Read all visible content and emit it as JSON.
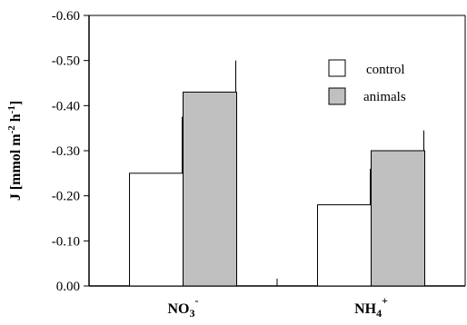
{
  "chart_data": {
    "type": "bar",
    "ylabel_main": "J [mmol m",
    "ylabel_sup1": "-2",
    "ylabel_mid": " h",
    "ylabel_sup2": "-1",
    "ylabel_end": "]",
    "ylim": [
      0,
      -0.6
    ],
    "yticks": [
      "0.00",
      "-0.10",
      "-0.20",
      "-0.30",
      "-0.40",
      "-0.50",
      "-0.60"
    ],
    "ytick_values": [
      0,
      -0.1,
      -0.2,
      -0.3,
      -0.4,
      -0.5,
      -0.6
    ],
    "categories": [
      {
        "base": "NO",
        "sub": "3",
        "sup": "-"
      },
      {
        "base": "NH",
        "sub": "4",
        "sup": "+"
      }
    ],
    "series": [
      {
        "name": "control",
        "values": [
          -0.25,
          -0.18
        ],
        "errors": [
          0.125,
          0.08
        ],
        "color": "#ffffff"
      },
      {
        "name": "animals",
        "values": [
          -0.43,
          -0.3
        ],
        "errors": [
          0.07,
          0.045
        ],
        "color": "#c0c0c0"
      }
    ],
    "legend_position": "top-right",
    "grid": false
  }
}
